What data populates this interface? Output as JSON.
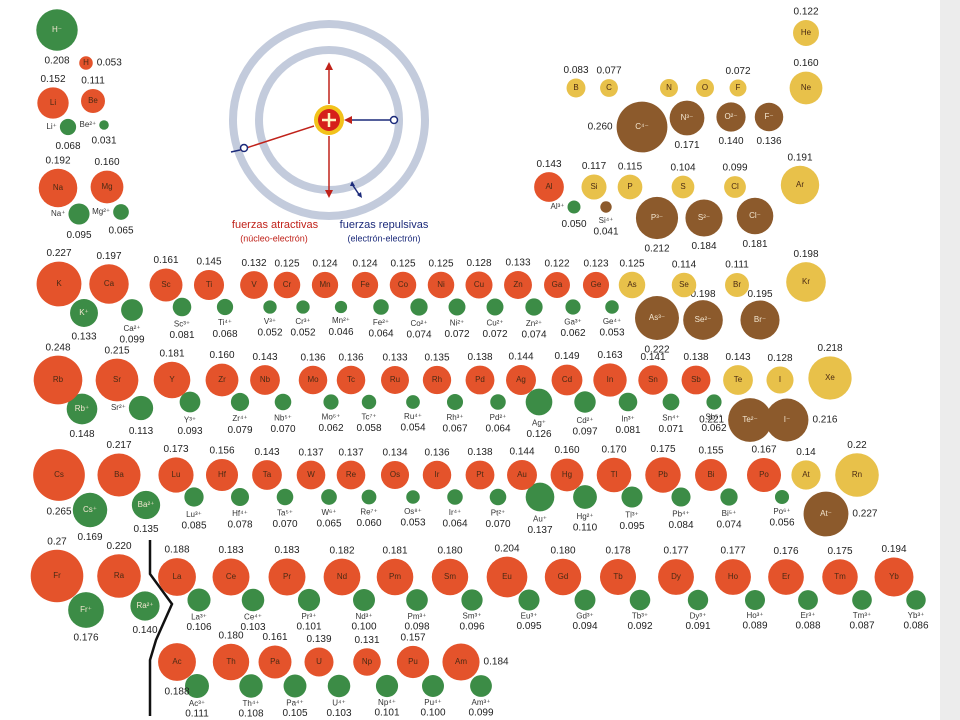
{
  "inset": {
    "attractive": "fuerzas atractivas",
    "attractive_sub": "(núcleo-electrón)",
    "repulsive": "fuerzas repulsivas",
    "repulsive_sub": "(electrón-electrón)"
  },
  "elements": [
    {
      "symbol": "H",
      "radius": "0.053",
      "color": "#e4532b",
      "ion": "H⁻",
      "ion_radius": "0.208",
      "ion_color": "#3c8c46"
    },
    {
      "symbol": "Li",
      "radius": "0.152",
      "color": "#e4532b",
      "ion": "Li⁺",
      "ion_radius": "0.068",
      "ion_color": "#3c8c46"
    },
    {
      "symbol": "Be",
      "radius": "0.111",
      "color": "#e4532b",
      "ion": "Be²⁺",
      "ion_radius": "0.031",
      "ion_color": "#3c8c46"
    },
    {
      "symbol": "Na",
      "radius": "0.192",
      "color": "#e4532b",
      "ion": "Na⁺",
      "ion_radius": "0.095",
      "ion_color": "#3c8c46"
    },
    {
      "symbol": "Mg",
      "radius": "0.160",
      "color": "#e4532b",
      "ion": "Mg²⁺",
      "ion_radius": "0.065",
      "ion_color": "#3c8c46"
    },
    {
      "symbol": "K",
      "radius": "0.227",
      "color": "#e4532b",
      "ion": "K⁺",
      "ion_radius": "0.133",
      "ion_color": "#3c8c46"
    },
    {
      "symbol": "Ca",
      "radius": "0.197",
      "color": "#e4532b",
      "ion": "Ca²⁺",
      "ion_radius": "0.099",
      "ion_color": "#3c8c46"
    },
    {
      "symbol": "Rb",
      "radius": "0.248",
      "color": "#e4532b",
      "ion": "Rb⁺",
      "ion_radius": "0.148",
      "ion_color": "#3c8c46"
    },
    {
      "symbol": "Sr",
      "radius": "0.215",
      "color": "#e4532b",
      "ion": "Sr²⁺",
      "ion_radius": "0.113",
      "ion_color": "#3c8c46"
    },
    {
      "symbol": "Cs",
      "radius": "0.265",
      "color": "#e4532b",
      "ion": "Cs⁺",
      "ion_radius": "0.169",
      "ion_color": "#3c8c46"
    },
    {
      "symbol": "Ba",
      "radius": "0.217",
      "color": "#e4532b",
      "ion": "Ba²⁺",
      "ion_radius": "0.135",
      "ion_color": "#3c8c46"
    },
    {
      "symbol": "Fr",
      "radius": "0.27",
      "color": "#e4532b",
      "ion": "Fr⁺",
      "ion_radius": "0.176",
      "ion_color": "#3c8c46"
    },
    {
      "symbol": "Ra",
      "radius": "0.220",
      "color": "#e4532b",
      "ion": "Ra²⁺",
      "ion_radius": "0.140",
      "ion_color": "#3c8c46"
    },
    {
      "symbol": "Sc",
      "radius": "0.161",
      "color": "#e4532b",
      "ion": "Sc³⁺",
      "ion_radius": "0.081",
      "ion_color": "#3c8c46"
    },
    {
      "symbol": "Ti",
      "radius": "0.145",
      "color": "#e4532b",
      "ion": "Ti⁴⁺",
      "ion_radius": "0.068",
      "ion_color": "#3c8c46"
    },
    {
      "symbol": "V",
      "radius": "0.132",
      "color": "#e4532b",
      "ion": "V³⁺",
      "ion_radius": "0.052",
      "ion_color": "#3c8c46"
    },
    {
      "symbol": "Cr",
      "radius": "0.125",
      "color": "#e4532b",
      "ion": "Cr³⁺",
      "ion_radius": "0.052",
      "ion_color": "#3c8c46"
    },
    {
      "symbol": "Mn",
      "radius": "0.124",
      "color": "#e4532b",
      "ion": "Mn²⁺",
      "ion_radius": "0.046",
      "ion_color": "#3c8c46"
    },
    {
      "symbol": "Fe",
      "radius": "0.124",
      "color": "#e4532b",
      "ion": "Fe²⁺",
      "ion_radius": "0.064",
      "ion_color": "#3c8c46"
    },
    {
      "symbol": "Co",
      "radius": "0.125",
      "color": "#e4532b",
      "ion": "Co²⁺",
      "ion_radius": "0.074",
      "ion_color": "#3c8c46"
    },
    {
      "symbol": "Ni",
      "radius": "0.125",
      "color": "#e4532b",
      "ion": "Ni²⁺",
      "ion_radius": "0.072",
      "ion_color": "#3c8c46"
    },
    {
      "symbol": "Cu",
      "radius": "0.128",
      "color": "#e4532b",
      "ion": "Cu²⁺",
      "ion_radius": "0.072",
      "ion_color": "#3c8c46"
    },
    {
      "symbol": "Zn",
      "radius": "0.133",
      "color": "#e4532b",
      "ion": "Zn²⁺",
      "ion_radius": "0.074",
      "ion_color": "#3c8c46"
    },
    {
      "symbol": "Ga",
      "radius": "0.122",
      "color": "#e4532b",
      "ion": "Ga³⁺",
      "ion_radius": "0.062",
      "ion_color": "#3c8c46"
    },
    {
      "symbol": "Ge",
      "radius": "0.123",
      "color": "#e4532b",
      "ion": "Ge⁴⁺",
      "ion_radius": "0.053",
      "ion_color": "#3c8c46"
    },
    {
      "symbol": "As",
      "radius": "0.125",
      "color": "#e8c14a",
      "ion": "As³⁻",
      "ion_radius": "0.222",
      "ion_color": "#8c5a2c"
    },
    {
      "symbol": "Se",
      "radius": "0.114",
      "color": "#e8c14a",
      "ion": "Se²⁻",
      "ion_radius": "0.198",
      "ion_color": "#8c5a2c"
    },
    {
      "symbol": "Br",
      "radius": "0.111",
      "color": "#e8c14a",
      "ion": "Br⁻",
      "ion_radius": "0.195",
      "ion_color": "#8c5a2c"
    },
    {
      "symbol": "Kr",
      "radius": "0.198",
      "color": "#e8c14a"
    },
    {
      "symbol": "Y",
      "radius": "0.181",
      "color": "#e4532b",
      "ion": "Y³⁺",
      "ion_radius": "0.093",
      "ion_color": "#3c8c46"
    },
    {
      "symbol": "Zr",
      "radius": "0.160",
      "color": "#e4532b",
      "ion": "Zr⁴⁺",
      "ion_radius": "0.079",
      "ion_color": "#3c8c46"
    },
    {
      "symbol": "Nb",
      "radius": "0.143",
      "color": "#e4532b",
      "ion": "Nb⁵⁺",
      "ion_radius": "0.070",
      "ion_color": "#3c8c46"
    },
    {
      "symbol": "Mo",
      "radius": "0.136",
      "color": "#e4532b",
      "ion": "Mo⁶⁺",
      "ion_radius": "0.062",
      "ion_color": "#3c8c46"
    },
    {
      "symbol": "Tc",
      "radius": "0.136",
      "color": "#e4532b",
      "ion": "Tc⁷⁺",
      "ion_radius": "0.058",
      "ion_color": "#3c8c46"
    },
    {
      "symbol": "Ru",
      "radius": "0.133",
      "color": "#e4532b",
      "ion": "Ru⁴⁺",
      "ion_radius": "0.054",
      "ion_color": "#3c8c46"
    },
    {
      "symbol": "Rh",
      "radius": "0.135",
      "color": "#e4532b",
      "ion": "Rh³⁺",
      "ion_radius": "0.067",
      "ion_color": "#3c8c46"
    },
    {
      "symbol": "Pd",
      "radius": "0.138",
      "color": "#e4532b",
      "ion": "Pd²⁺",
      "ion_radius": "0.064",
      "ion_color": "#3c8c46"
    },
    {
      "symbol": "Ag",
      "radius": "0.144",
      "color": "#e4532b",
      "ion": "Ag⁺",
      "ion_radius": "0.126",
      "ion_color": "#3c8c46"
    },
    {
      "symbol": "Cd",
      "radius": "0.149",
      "color": "#e4532b",
      "ion": "Cd²⁺",
      "ion_radius": "0.097",
      "ion_color": "#3c8c46"
    },
    {
      "symbol": "In",
      "radius": "0.163",
      "color": "#e4532b",
      "ion": "In³⁺",
      "ion_radius": "0.081",
      "ion_color": "#3c8c46"
    },
    {
      "symbol": "Sn",
      "radius": "0.141",
      "color": "#e4532b",
      "ion": "Sn⁴⁺",
      "ion_radius": "0.071",
      "ion_color": "#3c8c46"
    },
    {
      "symbol": "Sb",
      "radius": "0.138",
      "color": "#e4532b",
      "ion": "Sb⁵⁺",
      "ion_radius": "0.062",
      "ion_color": "#3c8c46"
    },
    {
      "symbol": "Te",
      "radius": "0.143",
      "color": "#e8c14a",
      "ion": "Te²⁻",
      "ion_radius": "0.221",
      "ion_color": "#8c5a2c"
    },
    {
      "symbol": "I",
      "radius": "0.128",
      "color": "#e8c14a",
      "ion": "I⁻",
      "ion_radius": "0.216",
      "ion_color": "#8c5a2c"
    },
    {
      "symbol": "Xe",
      "radius": "0.218",
      "color": "#e8c14a"
    },
    {
      "symbol": "Lu",
      "radius": "0.173",
      "color": "#e4532b",
      "ion": "Lu³⁺",
      "ion_radius": "0.085",
      "ion_color": "#3c8c46"
    },
    {
      "symbol": "Hf",
      "radius": "0.156",
      "color": "#e4532b",
      "ion": "Hf⁴⁺",
      "ion_radius": "0.078",
      "ion_color": "#3c8c46"
    },
    {
      "symbol": "Ta",
      "radius": "0.143",
      "color": "#e4532b",
      "ion": "Ta⁵⁺",
      "ion_radius": "0.070",
      "ion_color": "#3c8c46"
    },
    {
      "symbol": "W",
      "radius": "0.137",
      "color": "#e4532b",
      "ion": "W⁶⁺",
      "ion_radius": "0.065",
      "ion_color": "#3c8c46"
    },
    {
      "symbol": "Re",
      "radius": "0.137",
      "color": "#e4532b",
      "ion": "Re⁷⁺",
      "ion_radius": "0.060",
      "ion_color": "#3c8c46"
    },
    {
      "symbol": "Os",
      "radius": "0.134",
      "color": "#e4532b",
      "ion": "Os⁸⁺",
      "ion_radius": "0.053",
      "ion_color": "#3c8c46"
    },
    {
      "symbol": "Ir",
      "radius": "0.136",
      "color": "#e4532b",
      "ion": "Ir⁴⁺",
      "ion_radius": "0.064",
      "ion_color": "#3c8c46"
    },
    {
      "symbol": "Pt",
      "radius": "0.138",
      "color": "#e4532b",
      "ion": "Pt²⁺",
      "ion_radius": "0.070",
      "ion_color": "#3c8c46"
    },
    {
      "symbol": "Au",
      "radius": "0.144",
      "color": "#e4532b",
      "ion": "Au⁺",
      "ion_radius": "0.137",
      "ion_color": "#3c8c46"
    },
    {
      "symbol": "Hg",
      "radius": "0.160",
      "color": "#e4532b",
      "ion": "Hg²⁺",
      "ion_radius": "0.110",
      "ion_color": "#3c8c46"
    },
    {
      "symbol": "Tl",
      "radius": "0.170",
      "color": "#e4532b",
      "ion": "Tl³⁺",
      "ion_radius": "0.095",
      "ion_color": "#3c8c46"
    },
    {
      "symbol": "Pb",
      "radius": "0.175",
      "color": "#e4532b",
      "ion": "Pb⁴⁺",
      "ion_radius": "0.084",
      "ion_color": "#3c8c46"
    },
    {
      "symbol": "Bi",
      "radius": "0.155",
      "color": "#e4532b",
      "ion": "Bi⁵⁺",
      "ion_radius": "0.074",
      "ion_color": "#3c8c46"
    },
    {
      "symbol": "Po",
      "radius": "0.167",
      "color": "#e4532b",
      "ion": "Po⁶⁺",
      "ion_radius": "0.056",
      "ion_color": "#3c8c46"
    },
    {
      "symbol": "At",
      "radius": "0.14",
      "color": "#e8c14a",
      "ion": "At⁻",
      "ion_radius": "0.227",
      "ion_color": "#8c5a2c"
    },
    {
      "symbol": "Rn",
      "radius": "0.22",
      "color": "#e8c14a"
    },
    {
      "symbol": "B",
      "radius": "0.083",
      "color": "#e8c14a"
    },
    {
      "symbol": "C",
      "radius": "0.077",
      "color": "#e8c14a",
      "ion": "C⁴⁻",
      "ion_radius": "0.260",
      "ion_color": "#8c5a2c"
    },
    {
      "symbol": "N",
      "radius": null,
      "color": "#e8c14a",
      "ion": "N³⁻",
      "ion_radius": "0.171",
      "ion_color": "#8c5a2c"
    },
    {
      "symbol": "O",
      "radius": null,
      "color": "#e8c14a",
      "ion": "O²⁻",
      "ion_radius": "0.140",
      "ion_color": "#8c5a2c"
    },
    {
      "symbol": "F",
      "radius": "0.072",
      "color": "#e8c14a",
      "ion": "F⁻",
      "ion_radius": "0.136",
      "ion_color": "#8c5a2c"
    },
    {
      "symbol": "He",
      "radius": "0.122",
      "color": "#e8c14a"
    },
    {
      "symbol": "Ne",
      "radius": "0.160",
      "color": "#e8c14a"
    },
    {
      "symbol": "Al",
      "radius": "0.143",
      "color": "#e4532b",
      "ion": "Al³⁺",
      "ion_radius": "0.050",
      "ion_color": "#3c8c46"
    },
    {
      "symbol": "Si",
      "radius": "0.117",
      "color": "#e8c14a",
      "ion": "Si⁴⁺",
      "ion_radius": "0.041",
      "ion_color": "#8c5a2c"
    },
    {
      "symbol": "P",
      "radius": "0.115",
      "color": "#e8c14a",
      "ion": "P³⁻",
      "ion_radius": "0.212",
      "ion_color": "#8c5a2c"
    },
    {
      "symbol": "S",
      "radius": "0.104",
      "color": "#e8c14a",
      "ion": "S²⁻",
      "ion_radius": "0.184",
      "ion_color": "#8c5a2c"
    },
    {
      "symbol": "Cl",
      "radius": "0.099",
      "color": "#e8c14a",
      "ion": "Cl⁻",
      "ion_radius": "0.181",
      "ion_color": "#8c5a2c"
    },
    {
      "symbol": "Ar",
      "radius": "0.191",
      "color": "#e8c14a"
    },
    {
      "symbol": "La",
      "radius": "0.188",
      "color": "#e4532b",
      "ion": "La³⁺",
      "ion_radius": "0.106",
      "ion_color": "#3c8c46"
    },
    {
      "symbol": "Ce",
      "radius": "0.183",
      "color": "#e4532b",
      "ion": "Ce⁴⁺",
      "ion_radius": "0.103",
      "ion_color": "#3c8c46"
    },
    {
      "symbol": "Pr",
      "radius": "0.183",
      "color": "#e4532b",
      "ion": "Pr³⁺",
      "ion_radius": "0.101",
      "ion_color": "#3c8c46"
    },
    {
      "symbol": "Nd",
      "radius": "0.182",
      "color": "#e4532b",
      "ion": "Nd³⁺",
      "ion_radius": "0.100",
      "ion_color": "#3c8c46"
    },
    {
      "symbol": "Pm",
      "radius": "0.181",
      "color": "#e4532b",
      "ion": "Pm³⁺",
      "ion_radius": "0.098",
      "ion_color": "#3c8c46"
    },
    {
      "symbol": "Sm",
      "radius": "0.180",
      "color": "#e4532b",
      "ion": "Sm³⁺",
      "ion_radius": "0.096",
      "ion_color": "#3c8c46"
    },
    {
      "symbol": "Eu",
      "radius": "0.204",
      "color": "#e4532b",
      "ion": "Eu³⁺",
      "ion_radius": "0.095",
      "ion_color": "#3c8c46"
    },
    {
      "symbol": "Gd",
      "radius": "0.180",
      "color": "#e4532b",
      "ion": "Gd³⁺",
      "ion_radius": "0.094",
      "ion_color": "#3c8c46"
    },
    {
      "symbol": "Tb",
      "radius": "0.178",
      "color": "#e4532b",
      "ion": "Tb³⁺",
      "ion_radius": "0.092",
      "ion_color": "#3c8c46"
    },
    {
      "symbol": "Dy",
      "radius": "0.177",
      "color": "#e4532b",
      "ion": "Dy³⁺",
      "ion_radius": "0.091",
      "ion_color": "#3c8c46"
    },
    {
      "symbol": "Ho",
      "radius": "0.177",
      "color": "#e4532b",
      "ion": "Ho³⁺",
      "ion_radius": "0.089",
      "ion_color": "#3c8c46"
    },
    {
      "symbol": "Er",
      "radius": "0.176",
      "color": "#e4532b",
      "ion": "Er³⁺",
      "ion_radius": "0.088",
      "ion_color": "#3c8c46"
    },
    {
      "symbol": "Tm",
      "radius": "0.175",
      "color": "#e4532b",
      "ion": "Tm³⁺",
      "ion_radius": "0.087",
      "ion_color": "#3c8c46"
    },
    {
      "symbol": "Yb",
      "radius": "0.194",
      "color": "#e4532b",
      "ion": "Yb³⁺",
      "ion_radius": "0.086",
      "ion_color": "#3c8c46"
    },
    {
      "symbol": "Ac",
      "radius": "0.188",
      "color": "#e4532b",
      "ion": "Ac³⁺",
      "ion_radius": "0.111",
      "ion_color": "#3c8c46"
    },
    {
      "symbol": "Th",
      "radius": "0.180",
      "color": "#e4532b",
      "ion": "Th⁴⁺",
      "ion_radius": "0.108",
      "ion_color": "#3c8c46"
    },
    {
      "symbol": "Pa",
      "radius": "0.161",
      "color": "#e4532b",
      "ion": "Pa⁴⁺",
      "ion_radius": "0.105",
      "ion_color": "#3c8c46"
    },
    {
      "symbol": "U",
      "radius": "0.139",
      "color": "#e4532b",
      "ion": "U⁴⁺",
      "ion_radius": "0.103",
      "ion_color": "#3c8c46"
    },
    {
      "symbol": "Np",
      "radius": "0.131",
      "color": "#e4532b",
      "ion": "Np⁴⁺",
      "ion_radius": "0.101",
      "ion_color": "#3c8c46"
    },
    {
      "symbol": "Pu",
      "radius": "0.157",
      "color": "#e4532b",
      "ion": "Pu⁴⁺",
      "ion_radius": "0.100",
      "ion_color": "#3c8c46"
    },
    {
      "symbol": "Am",
      "radius": "0.184",
      "color": "#e4532b",
      "ion": "Am³⁺",
      "ion_radius": "0.099",
      "ion_color": "#3c8c46"
    }
  ]
}
